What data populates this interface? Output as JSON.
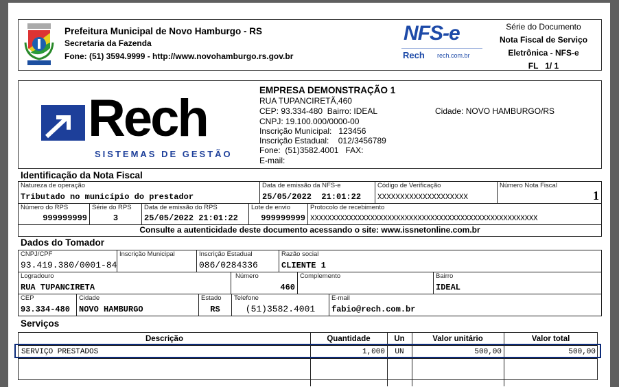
{
  "header": {
    "municipality": "Prefeitura Municipal de Novo Hamburgo - RS",
    "department": "Secretaria da Fazenda",
    "contact": "Fone: (51) 3594.9999 - http://www.novohamburgo.rs.gov.br",
    "nfse_logo": "NFS-e",
    "rech_small": "Rech",
    "rech_site": "rech.com.br",
    "doc_series_label": "Série do Documento",
    "doc_title_1": "Nota Fiscal de Serviço",
    "doc_title_2": "Eletrônica - NFS-e",
    "page_label": "FL   1/ 1"
  },
  "company": {
    "logo_text": "Rech",
    "logo_tagline": "SISTEMAS DE GESTÃO",
    "name": "EMPRESA DEMONSTRAÇÃO 1",
    "address": "RUA TUPANCIRETÃ,460",
    "cep_bairro": "CEP: 93.334-480  Bairro: IDEAL",
    "cidade": "Cidade: NOVO HAMBURGO/RS",
    "cnpj": "CNPJ: 19.100.000/0000-00",
    "insc_municipal": "Inscrição Municipal:   123456",
    "insc_estadual": "Inscrição Estadual:    012/3456789",
    "fone": "Fone:  (51)3582.4001   FAX:",
    "email": "E-mail:"
  },
  "identificacao": {
    "title": "Identificação da Nota Fiscal",
    "natureza_label": "Natureza de operação",
    "natureza": "Tributado no município do prestador",
    "data_nfse_label": "Data de emissão da NFS-e",
    "data_nfse": "25/05/2022  21:01:22",
    "codigo_label": "Código de Verificação",
    "codigo": "XXXXXXXXXXXXXXXXXXXX",
    "numero_label": "Número Nota Fiscal",
    "numero": "1",
    "rps_label": "Número do RPS",
    "rps": "999999999",
    "serie_label": "Série do RPS",
    "serie": "3",
    "data_rps_label": "Data de emissão do RPS",
    "data_rps": "25/05/2022 21:01:22",
    "lote_label": "Lote de envio",
    "lote": "999999999",
    "protocolo_label": "Protocolo de recebimento",
    "protocolo": "XXXXXXXXXXXXXXXXXXXXXXXXXXXXXXXXXXXXXXXXXXXXXXXXXXXXX",
    "consulte": "Consulte a autenticidade deste documento acessando o site: www.issnetonline.com.br"
  },
  "tomador": {
    "title": "Dados do Tomador",
    "cnpj_label": "CNPJ/CPF",
    "cnpj": "93.419.380/0001-84",
    "im_label": "Inscrição Municipal",
    "im": "",
    "ie_label": "Inscrição Estadual",
    "ie": "086/0284336",
    "razao_label": "Razão social",
    "razao": "CLIENTE 1",
    "logradouro_label": "Logradouro",
    "logradouro": "RUA TUPANCIRETA",
    "numero_label": "Número",
    "numero": "460",
    "complemento_label": "Complemento",
    "complemento": "",
    "bairro_label": "Bairro",
    "bairro": "IDEAL",
    "cep_label": "CEP",
    "cep": "93.334-480",
    "cidade_label": "Cidade",
    "cidade": "NOVO HAMBURGO",
    "estado_label": "Estado",
    "estado": "RS",
    "telefone_label": "Telefone",
    "telefone": "(51)3582.4001",
    "email_label": "E-mail",
    "email": "fabio@rech.com.br"
  },
  "servicos": {
    "title": "Serviços",
    "columns": [
      "Descrição",
      "Quantidade",
      "Un",
      "Valor unitário",
      "Valor total"
    ],
    "rows": [
      [
        "SERVIÇO PRESTADOS",
        "1,000",
        "UN",
        "500,00",
        "500,00"
      ]
    ],
    "highlight_color": "#0b2a78"
  }
}
